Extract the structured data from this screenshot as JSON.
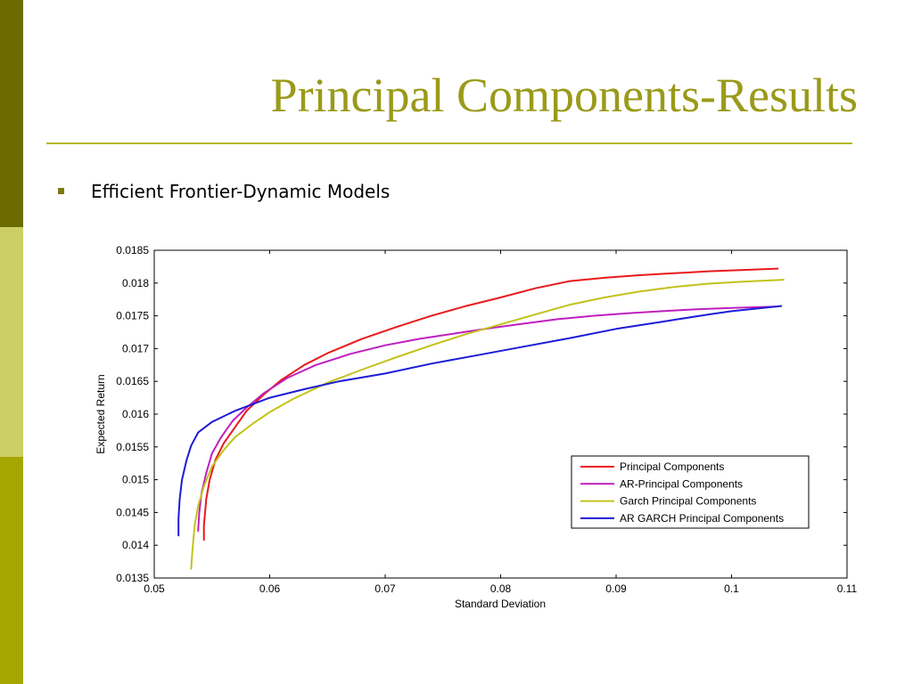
{
  "slide": {
    "title": "Principal Components-Results",
    "bullet": "Efficient Frontier-Dynamic Models"
  },
  "colors": {
    "title": "#9a9a1a",
    "rule": "#b6b81d",
    "bullet_marker": "#7a7a10",
    "sidebar_top": "#6b6b00",
    "sidebar_mid": "#cccf66",
    "sidebar_bottom": "#a6a600"
  },
  "chart_data": {
    "type": "line",
    "title": "",
    "xlabel": "Standard Deviation",
    "ylabel": "Expected Return",
    "xlim": [
      0.05,
      0.11
    ],
    "ylim": [
      0.0135,
      0.0185
    ],
    "xticks": [
      "0.05",
      "0.06",
      "0.07",
      "0.08",
      "0.09",
      "0.1",
      "0.11"
    ],
    "yticks": [
      "0.0135",
      "0.014",
      "0.0145",
      "0.015",
      "0.0155",
      "0.016",
      "0.0165",
      "0.017",
      "0.0175",
      "0.018",
      "0.0185"
    ],
    "grid": false,
    "legend_position": "bottom-right",
    "series": [
      {
        "name": "Principal Components",
        "color": "#e8191c",
        "points": [
          [
            0.0543,
            0.01408
          ],
          [
            0.0543,
            0.0143
          ],
          [
            0.0545,
            0.0147
          ],
          [
            0.0548,
            0.015
          ],
          [
            0.0553,
            0.0153
          ],
          [
            0.056,
            0.01555
          ],
          [
            0.057,
            0.0158
          ],
          [
            0.058,
            0.01605
          ],
          [
            0.0595,
            0.0163
          ],
          [
            0.061,
            0.01652
          ],
          [
            0.063,
            0.01675
          ],
          [
            0.065,
            0.01693
          ],
          [
            0.068,
            0.01715
          ],
          [
            0.071,
            0.01733
          ],
          [
            0.074,
            0.0175
          ],
          [
            0.077,
            0.01765
          ],
          [
            0.08,
            0.01778
          ],
          [
            0.083,
            0.01792
          ],
          [
            0.086,
            0.01803
          ],
          [
            0.089,
            0.01808
          ],
          [
            0.092,
            0.01812
          ],
          [
            0.095,
            0.01815
          ],
          [
            0.098,
            0.01818
          ],
          [
            0.101,
            0.0182
          ],
          [
            0.104,
            0.01822
          ]
        ]
      },
      {
        "name": "AR-Principal Components",
        "color": "#bf1fbf",
        "points": [
          [
            0.0538,
            0.01422
          ],
          [
            0.0539,
            0.0145
          ],
          [
            0.0541,
            0.0148
          ],
          [
            0.0545,
            0.0151
          ],
          [
            0.055,
            0.0154
          ],
          [
            0.0558,
            0.01565
          ],
          [
            0.0568,
            0.0159
          ],
          [
            0.058,
            0.0161
          ],
          [
            0.0595,
            0.01632
          ],
          [
            0.0615,
            0.01655
          ],
          [
            0.064,
            0.01675
          ],
          [
            0.067,
            0.01692
          ],
          [
            0.07,
            0.01705
          ],
          [
            0.073,
            0.01715
          ],
          [
            0.076,
            0.01723
          ],
          [
            0.079,
            0.01731
          ],
          [
            0.082,
            0.01738
          ],
          [
            0.085,
            0.01745
          ],
          [
            0.088,
            0.0175
          ],
          [
            0.091,
            0.01754
          ],
          [
            0.094,
            0.01757
          ],
          [
            0.097,
            0.0176
          ],
          [
            0.1,
            0.01762
          ],
          [
            0.1038,
            0.01764
          ]
        ]
      },
      {
        "name": "Garch Principal Components",
        "color": "#c2c21b",
        "points": [
          [
            0.0532,
            0.01364
          ],
          [
            0.0533,
            0.0139
          ],
          [
            0.0535,
            0.0143
          ],
          [
            0.0538,
            0.0146
          ],
          [
            0.0543,
            0.0149
          ],
          [
            0.055,
            0.0152
          ],
          [
            0.056,
            0.01545
          ],
          [
            0.057,
            0.01565
          ],
          [
            0.0585,
            0.01585
          ],
          [
            0.06,
            0.01603
          ],
          [
            0.062,
            0.01623
          ],
          [
            0.065,
            0.01648
          ],
          [
            0.068,
            0.01668
          ],
          [
            0.071,
            0.01687
          ],
          [
            0.074,
            0.01705
          ],
          [
            0.077,
            0.01722
          ],
          [
            0.08,
            0.01737
          ],
          [
            0.083,
            0.01752
          ],
          [
            0.086,
            0.01767
          ],
          [
            0.089,
            0.01778
          ],
          [
            0.092,
            0.01787
          ],
          [
            0.095,
            0.01794
          ],
          [
            0.098,
            0.01799
          ],
          [
            0.101,
            0.01802
          ],
          [
            0.1045,
            0.01805
          ]
        ]
      },
      {
        "name": "AR GARCH Principal Components",
        "color": "#1c1cd6",
        "points": [
          [
            0.0521,
            0.01415
          ],
          [
            0.0521,
            0.0144
          ],
          [
            0.0522,
            0.0147
          ],
          [
            0.0524,
            0.015
          ],
          [
            0.0528,
            0.0153
          ],
          [
            0.0532,
            0.01552
          ],
          [
            0.0538,
            0.01572
          ],
          [
            0.055,
            0.01588
          ],
          [
            0.057,
            0.01605
          ],
          [
            0.06,
            0.01625
          ],
          [
            0.063,
            0.01638
          ],
          [
            0.066,
            0.0165
          ],
          [
            0.07,
            0.01662
          ],
          [
            0.074,
            0.01677
          ],
          [
            0.078,
            0.0169
          ],
          [
            0.082,
            0.01703
          ],
          [
            0.086,
            0.01716
          ],
          [
            0.09,
            0.0173
          ],
          [
            0.094,
            0.01741
          ],
          [
            0.098,
            0.01752
          ],
          [
            0.1,
            0.01757
          ],
          [
            0.1043,
            0.01765
          ]
        ]
      }
    ]
  }
}
